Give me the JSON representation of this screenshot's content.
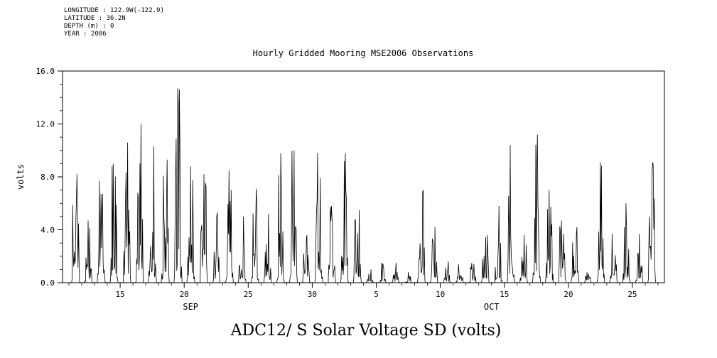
{
  "page": {
    "background": "#ffffff",
    "line_color": "#000000"
  },
  "header": {
    "metadata_lines": [
      "LONGITUDE : 122.9W(-122.9)",
      "LATITUDE : 36.2N",
      "DEPTH (m) : 0",
      "YEAR : 2006"
    ]
  },
  "chart_data": {
    "type": "line",
    "title": "Hourly Gridded Mooring MSE2006 Observations",
    "footer_title": "ADC12/ S Solar Voltage SD (volts)",
    "ylabel": "volts",
    "ylim": [
      0,
      16
    ],
    "yticks_major": [
      0,
      4,
      8,
      12,
      16
    ],
    "ytick_labels": [
      "0.0",
      "4.0",
      "8.0",
      "12.0",
      "16.0"
    ],
    "ytick_minor_step": 1,
    "grid": false,
    "legend": "none",
    "x_axis": {
      "unit": "day_of_year_2006",
      "range": [
        253.5,
        300.5
      ],
      "major_ticks": [
        {
          "doy": 258,
          "label": "15"
        },
        {
          "doy": 263,
          "label": "20"
        },
        {
          "doy": 268,
          "label": "25"
        },
        {
          "doy": 273,
          "label": "30"
        },
        {
          "doy": 278,
          "label": "5"
        },
        {
          "doy": 283,
          "label": "10"
        },
        {
          "doy": 288,
          "label": "15"
        },
        {
          "doy": 293,
          "label": "20"
        },
        {
          "doy": 298,
          "label": "25"
        }
      ],
      "minor_tick_step_days": 1,
      "month_labels": [
        {
          "label": "SEP",
          "doy": 263.5
        },
        {
          "label": "OCT",
          "doy": 287
        }
      ]
    },
    "series": [
      {
        "name": "ADC12/ S Solar Voltage SD",
        "units": "volts",
        "sampling": "hourly",
        "shape": "diurnal_spikes_baseline_zero",
        "daily_peaks": [
          {
            "date": "2006-09-11",
            "doy": 254,
            "peak": 8.2
          },
          {
            "date": "2006-09-12",
            "doy": 255,
            "peak": 4.7
          },
          {
            "date": "2006-09-13",
            "doy": 256,
            "peak": 7.7
          },
          {
            "date": "2006-09-14",
            "doy": 257,
            "peak": 9.0
          },
          {
            "date": "2006-09-15",
            "doy": 258,
            "peak": 10.6
          },
          {
            "date": "2006-09-16",
            "doy": 259,
            "peak": 12.0
          },
          {
            "date": "2006-09-17",
            "doy": 260,
            "peak": 10.3
          },
          {
            "date": "2006-09-18",
            "doy": 261,
            "peak": 9.3
          },
          {
            "date": "2006-09-19",
            "doy": 262,
            "peak": 14.7
          },
          {
            "date": "2006-09-20",
            "doy": 263,
            "peak": 8.8
          },
          {
            "date": "2006-09-21",
            "doy": 264,
            "peak": 8.2
          },
          {
            "date": "2006-09-22",
            "doy": 265,
            "peak": 5.3
          },
          {
            "date": "2006-09-23",
            "doy": 266,
            "peak": 8.5
          },
          {
            "date": "2006-09-24",
            "doy": 267,
            "peak": 5.0
          },
          {
            "date": "2006-09-25",
            "doy": 268,
            "peak": 7.1
          },
          {
            "date": "2006-09-26",
            "doy": 269,
            "peak": 5.2
          },
          {
            "date": "2006-09-27",
            "doy": 270,
            "peak": 9.8
          },
          {
            "date": "2006-09-28",
            "doy": 271,
            "peak": 10.0
          },
          {
            "date": "2006-09-29",
            "doy": 272,
            "peak": 3.6
          },
          {
            "date": "2006-09-30",
            "doy": 273,
            "peak": 9.8
          },
          {
            "date": "2006-10-01",
            "doy": 274,
            "peak": 5.8
          },
          {
            "date": "2006-10-02",
            "doy": 275,
            "peak": 9.8
          },
          {
            "date": "2006-10-03",
            "doy": 276,
            "peak": 5.5
          },
          {
            "date": "2006-10-04",
            "doy": 277,
            "peak": 1.0
          },
          {
            "date": "2006-10-05",
            "doy": 278,
            "peak": 1.5
          },
          {
            "date": "2006-10-06",
            "doy": 279,
            "peak": 1.5
          },
          {
            "date": "2006-10-07",
            "doy": 280,
            "peak": 0.8
          },
          {
            "date": "2006-10-08",
            "doy": 281,
            "peak": 7.0
          },
          {
            "date": "2006-10-09",
            "doy": 282,
            "peak": 4.2
          },
          {
            "date": "2006-10-10",
            "doy": 283,
            "peak": 1.6
          },
          {
            "date": "2006-10-11",
            "doy": 284,
            "peak": 1.4
          },
          {
            "date": "2006-10-12",
            "doy": 285,
            "peak": 1.5
          },
          {
            "date": "2006-10-13",
            "doy": 286,
            "peak": 3.6
          },
          {
            "date": "2006-10-14",
            "doy": 287,
            "peak": 5.8
          },
          {
            "date": "2006-10-15",
            "doy": 288,
            "peak": 10.4
          },
          {
            "date": "2006-10-16",
            "doy": 289,
            "peak": 3.6
          },
          {
            "date": "2006-10-17",
            "doy": 290,
            "peak": 11.2
          },
          {
            "date": "2006-10-18",
            "doy": 291,
            "peak": 7.0
          },
          {
            "date": "2006-10-19",
            "doy": 292,
            "peak": 4.7
          },
          {
            "date": "2006-10-20",
            "doy": 293,
            "peak": 4.2
          },
          {
            "date": "2006-10-21",
            "doy": 294,
            "peak": 0.8
          },
          {
            "date": "2006-10-22",
            "doy": 295,
            "peak": 9.1
          },
          {
            "date": "2006-10-23",
            "doy": 296,
            "peak": 3.7
          },
          {
            "date": "2006-10-24",
            "doy": 297,
            "peak": 6.0
          },
          {
            "date": "2006-10-25",
            "doy": 298,
            "peak": 3.7
          },
          {
            "date": "2006-10-26",
            "doy": 299,
            "peak": 9.1
          }
        ]
      }
    ]
  }
}
